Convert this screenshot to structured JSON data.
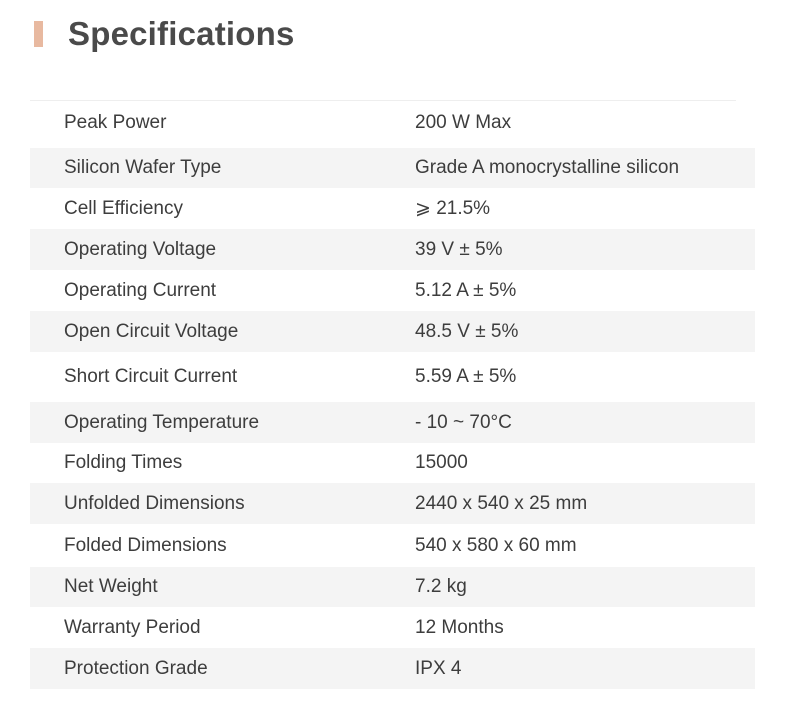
{
  "heading": {
    "title": "Specifications",
    "accent_color": "#e8b9a0"
  },
  "specs": [
    {
      "label": "Peak Power",
      "value": "200 W Max"
    },
    {
      "label": "Silicon Wafer Type",
      "value": "Grade A monocrystalline silicon"
    },
    {
      "label": "Cell Efficiency",
      "value": "⩾ 21.5%"
    },
    {
      "label": "Operating Voltage",
      "value": "39 V ± 5%"
    },
    {
      "label": "Operating Current",
      "value": "5.12 A ± 5%"
    },
    {
      "label": "Open Circuit Voltage",
      "value": "48.5 V ± 5%"
    },
    {
      "label": "Short Circuit Current",
      "value": "5.59 A ± 5%"
    },
    {
      "label": "Operating Temperature",
      "value": "- 10 ~ 70°C"
    },
    {
      "label": "Folding Times",
      "value": "15000"
    },
    {
      "label": "Unfolded Dimensions",
      "value": "2440 x 540 x 25 mm"
    },
    {
      "label": "Folded Dimensions",
      "value": "540 x 580 x 60 mm"
    },
    {
      "label": "Net Weight",
      "value": "7.2 kg"
    },
    {
      "label": "Warranty Period",
      "value": "12 Months"
    },
    {
      "label": "Protection Grade",
      "value": "IPX 4"
    }
  ]
}
